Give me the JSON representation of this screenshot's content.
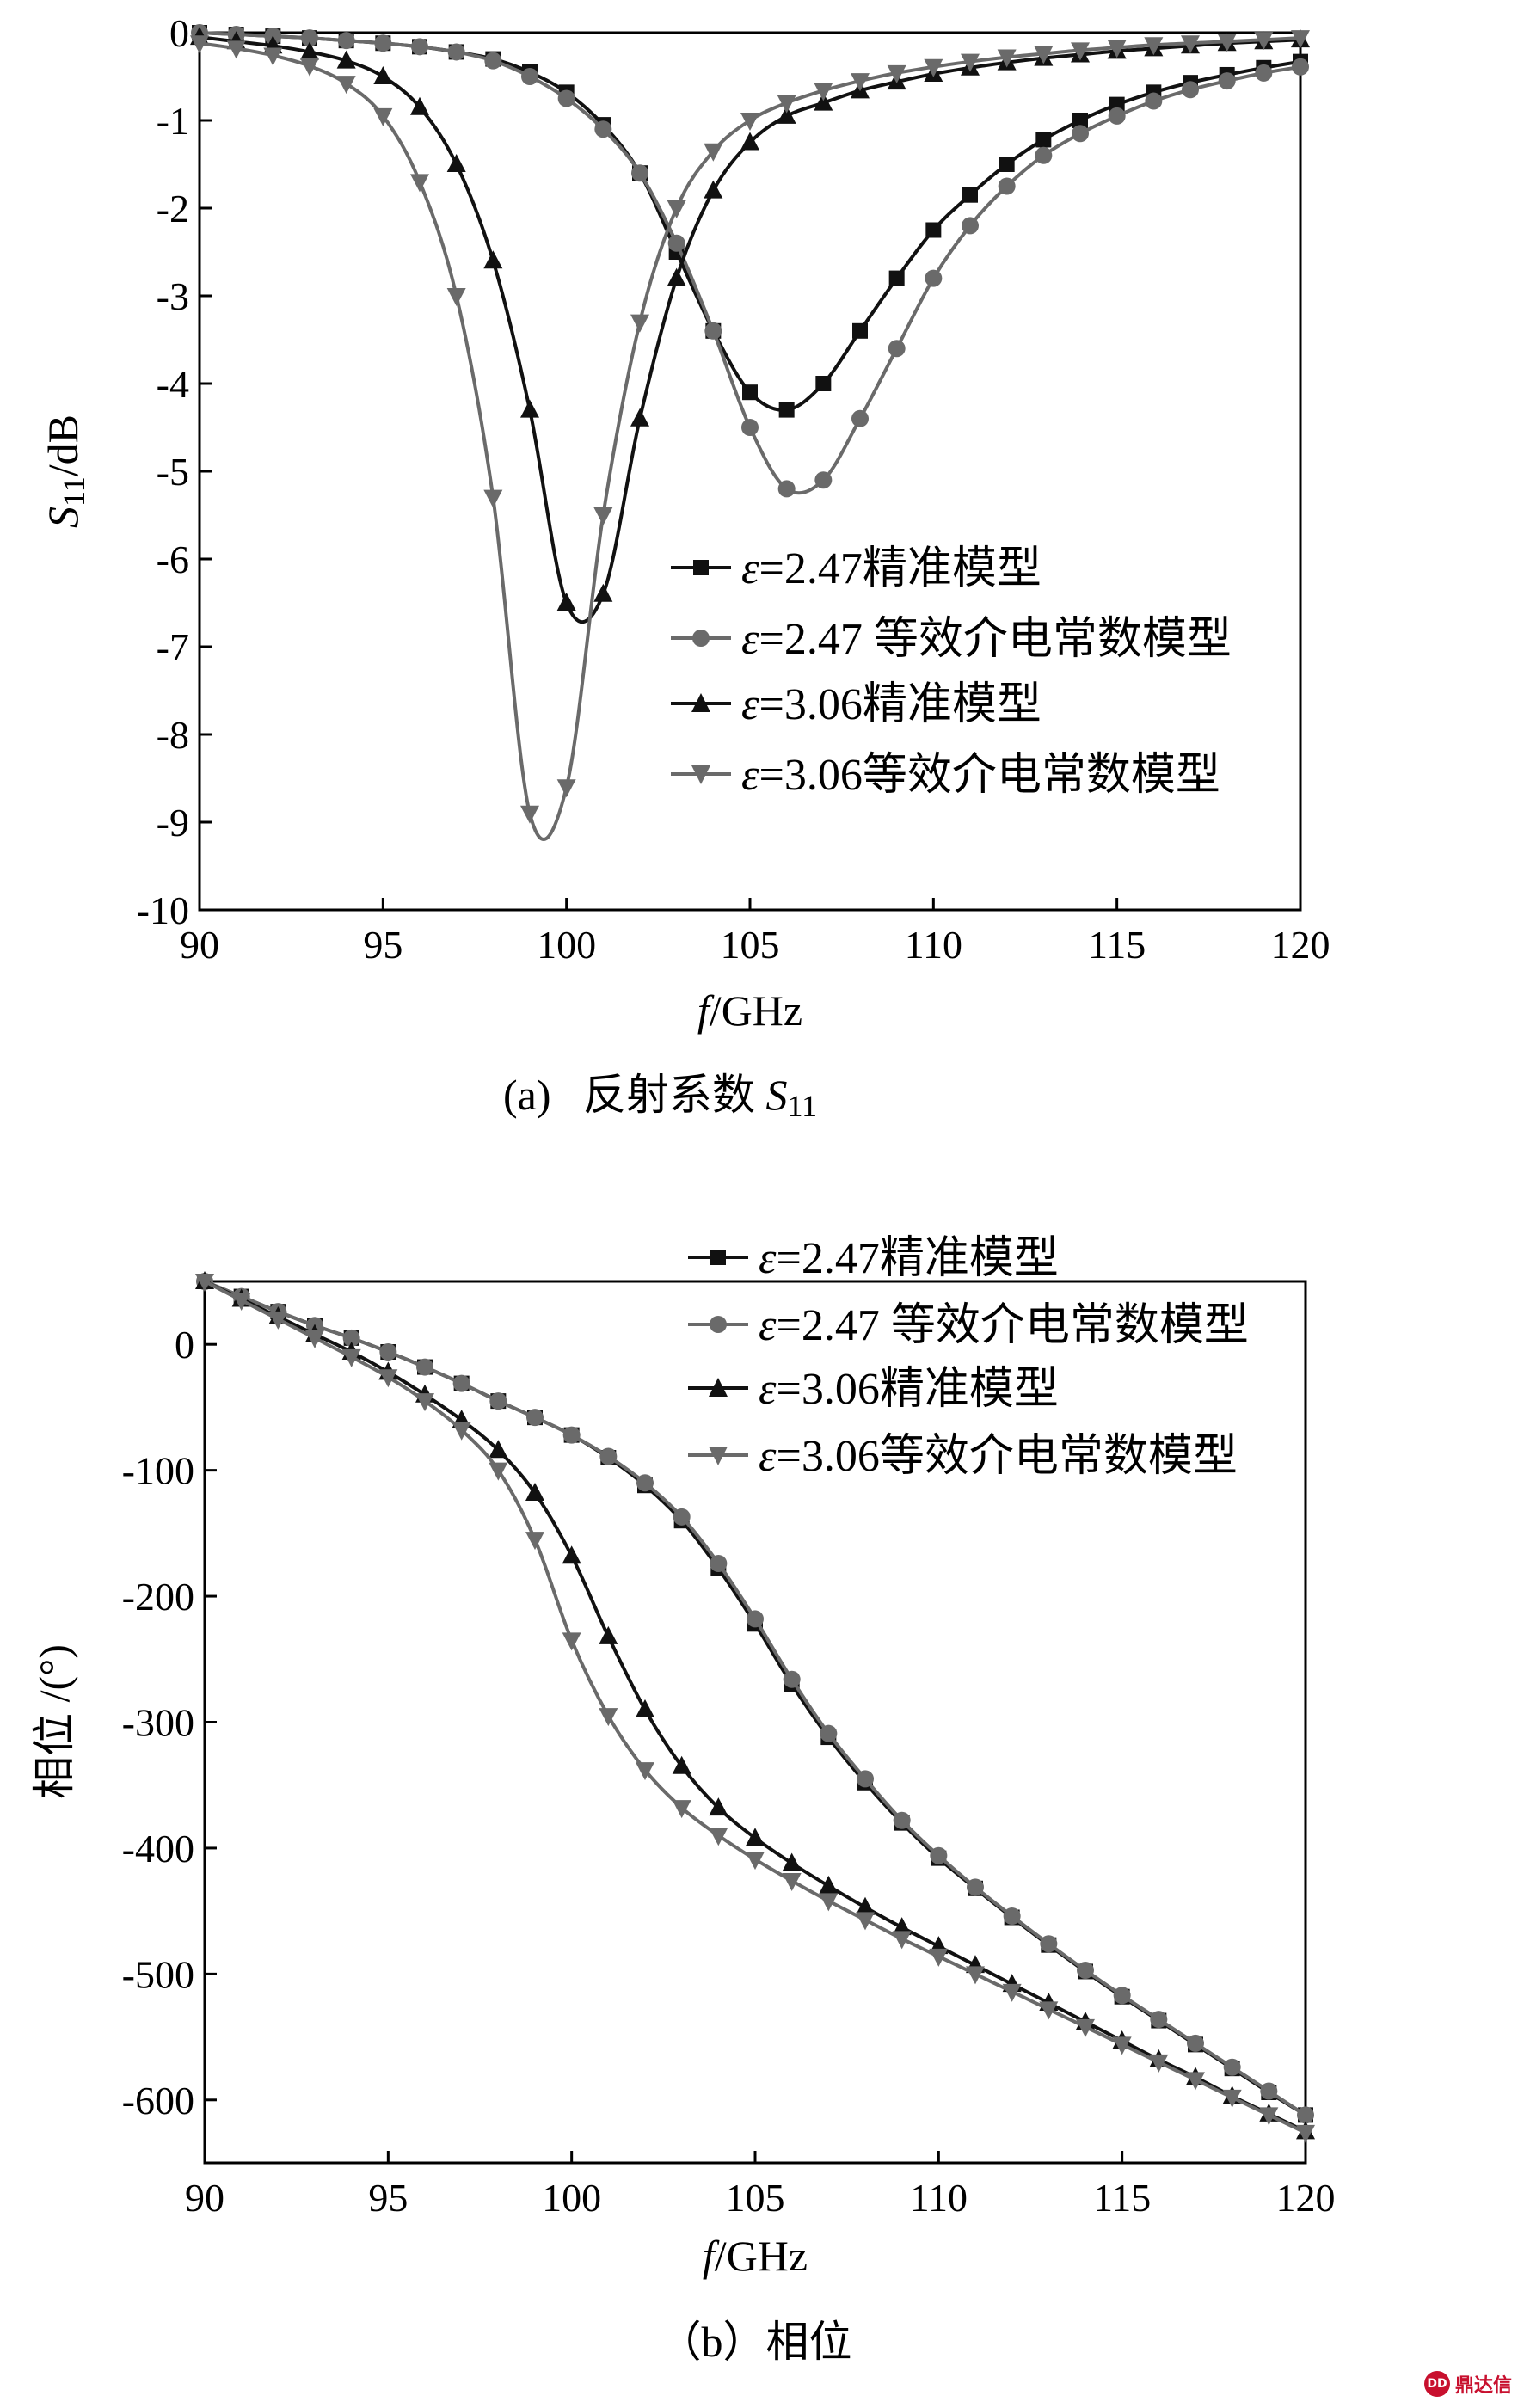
{
  "colors": {
    "black": "#111111",
    "gray": "#6a6a6a"
  },
  "legend": [
    {
      "prefix": "ε",
      "label": "=2.47精准模型",
      "marker": "square",
      "color": "#111111"
    },
    {
      "prefix": "ε",
      "label": "=2.47 等效介电常数模型",
      "marker": "circle",
      "color": "#6a6a6a"
    },
    {
      "prefix": "ε",
      "label": "=3.06精准模型",
      "marker": "triangle-up",
      "color": "#111111"
    },
    {
      "prefix": "ε",
      "label": "=3.06等效介电常数模型",
      "marker": "triangle-down",
      "color": "#6a6a6a"
    }
  ],
  "watermark": {
    "logo": "DD",
    "text": "鼎达信"
  },
  "chart_data": [
    {
      "type": "line",
      "caption_prefix": "(a)   反射系数 ",
      "caption_symbol": "S",
      "caption_sub": "11",
      "xlabel_italic": "f",
      "xlabel_rest": "/GHz",
      "ylabel_italic": "S",
      "ylabel_sub": "11",
      "ylabel_rest": "/dB",
      "xlim": [
        90,
        120
      ],
      "ylim": [
        -10,
        0
      ],
      "xticks": [
        "90",
        "95",
        "100",
        "105",
        "110",
        "115",
        "120"
      ],
      "yticks": [
        "0",
        "-1",
        "-2",
        "-3",
        "-4",
        "-5",
        "-6",
        "-7",
        "-8",
        "-9",
        "-10"
      ],
      "legend_position": "center-right",
      "x": [
        90,
        91,
        92,
        93,
        94,
        95,
        96,
        97,
        98,
        99,
        100,
        101,
        102,
        103,
        104,
        105,
        106,
        107,
        108,
        109,
        110,
        111,
        112,
        113,
        114,
        115,
        116,
        117,
        118,
        119,
        120
      ],
      "series": [
        {
          "name": "ε=2.47精准模型",
          "color": "#111111",
          "marker": "square",
          "values": [
            0.0,
            -0.02,
            -0.04,
            -0.06,
            -0.09,
            -0.12,
            -0.16,
            -0.22,
            -0.3,
            -0.45,
            -0.68,
            -1.05,
            -1.6,
            -2.5,
            -3.4,
            -4.1,
            -4.3,
            -4.0,
            -3.4,
            -2.8,
            -2.25,
            -1.85,
            -1.5,
            -1.22,
            -1.0,
            -0.82,
            -0.68,
            -0.57,
            -0.48,
            -0.4,
            -0.33
          ]
        },
        {
          "name": "ε=2.47 等效介电常数模型",
          "color": "#6a6a6a",
          "marker": "circle",
          "values": [
            0.0,
            -0.02,
            -0.04,
            -0.06,
            -0.09,
            -0.12,
            -0.16,
            -0.22,
            -0.32,
            -0.5,
            -0.75,
            -1.1,
            -1.6,
            -2.4,
            -3.4,
            -4.5,
            -5.2,
            -5.1,
            -4.4,
            -3.6,
            -2.8,
            -2.2,
            -1.75,
            -1.4,
            -1.15,
            -0.95,
            -0.78,
            -0.65,
            -0.55,
            -0.46,
            -0.39
          ]
        },
        {
          "name": "ε=3.06精准模型",
          "color": "#111111",
          "marker": "triangle-up",
          "values": [
            -0.05,
            -0.1,
            -0.15,
            -0.22,
            -0.32,
            -0.5,
            -0.85,
            -1.5,
            -2.6,
            -4.3,
            -6.5,
            -6.4,
            -4.4,
            -2.8,
            -1.8,
            -1.25,
            -0.95,
            -0.8,
            -0.66,
            -0.56,
            -0.47,
            -0.4,
            -0.34,
            -0.29,
            -0.25,
            -0.21,
            -0.18,
            -0.15,
            -0.12,
            -0.1,
            -0.08
          ]
        },
        {
          "name": "ε=3.06等效介电常数模型",
          "color": "#6a6a6a",
          "marker": "triangle-down",
          "values": [
            -0.12,
            -0.18,
            -0.26,
            -0.38,
            -0.58,
            -0.95,
            -1.7,
            -3.0,
            -5.3,
            -8.9,
            -8.6,
            -5.5,
            -3.3,
            -2.0,
            -1.35,
            -1.0,
            -0.8,
            -0.66,
            -0.55,
            -0.46,
            -0.39,
            -0.33,
            -0.28,
            -0.24,
            -0.2,
            -0.17,
            -0.14,
            -0.12,
            -0.1,
            -0.08,
            -0.06
          ]
        }
      ]
    },
    {
      "type": "line",
      "caption": "（b）相位",
      "xlabel_italic": "f",
      "xlabel_rest": "/GHz",
      "ylabel": "相位 /(°)",
      "xlim": [
        90,
        120
      ],
      "ylim": [
        -650,
        50
      ],
      "xticks": [
        "90",
        "95",
        "100",
        "105",
        "110",
        "115",
        "120"
      ],
      "yticks": [
        "0",
        "-100",
        "-200",
        "-300",
        "-400",
        "-500",
        "-600"
      ],
      "legend_position": "top-right",
      "x": [
        90,
        91,
        92,
        93,
        94,
        95,
        96,
        97,
        98,
        99,
        100,
        101,
        102,
        103,
        104,
        105,
        106,
        107,
        108,
        109,
        110,
        111,
        112,
        113,
        114,
        115,
        116,
        117,
        118,
        119,
        120
      ],
      "series": [
        {
          "name": "ε=2.47精准模型",
          "color": "#111111",
          "marker": "square",
          "values": [
            50,
            38,
            26,
            15,
            5,
            -6,
            -18,
            -31,
            -45,
            -58,
            -72,
            -90,
            -112,
            -140,
            -178,
            -222,
            -270,
            -312,
            -348,
            -380,
            -408,
            -432,
            -455,
            -477,
            -498,
            -518,
            -537,
            -556,
            -575,
            -594,
            -612
          ]
        },
        {
          "name": "ε=2.47 等效介电常数模型",
          "color": "#6a6a6a",
          "marker": "circle",
          "values": [
            50,
            38,
            26,
            15,
            5,
            -6,
            -18,
            -31,
            -45,
            -58,
            -72,
            -89,
            -110,
            -137,
            -174,
            -218,
            -266,
            -309,
            -345,
            -378,
            -406,
            -431,
            -454,
            -476,
            -497,
            -517,
            -536,
            -555,
            -574,
            -593,
            -612
          ]
        },
        {
          "name": "ε=3.06精准模型",
          "color": "#111111",
          "marker": "triangle-up",
          "values": [
            50,
            36,
            22,
            8,
            -6,
            -22,
            -40,
            -60,
            -84,
            -118,
            -168,
            -232,
            -290,
            -335,
            -368,
            -392,
            -412,
            -430,
            -447,
            -463,
            -478,
            -493,
            -508,
            -523,
            -538,
            -553,
            -568,
            -582,
            -597,
            -611,
            -625
          ]
        },
        {
          "name": "ε=3.06等效介电常数模型",
          "color": "#6a6a6a",
          "marker": "triangle-down",
          "values": [
            50,
            35,
            20,
            5,
            -10,
            -26,
            -45,
            -68,
            -100,
            -155,
            -235,
            -295,
            -338,
            -368,
            -390,
            -409,
            -426,
            -442,
            -457,
            -472,
            -486,
            -500,
            -514,
            -528,
            -542,
            -556,
            -570,
            -584,
            -598,
            -612,
            -626
          ]
        }
      ]
    }
  ]
}
